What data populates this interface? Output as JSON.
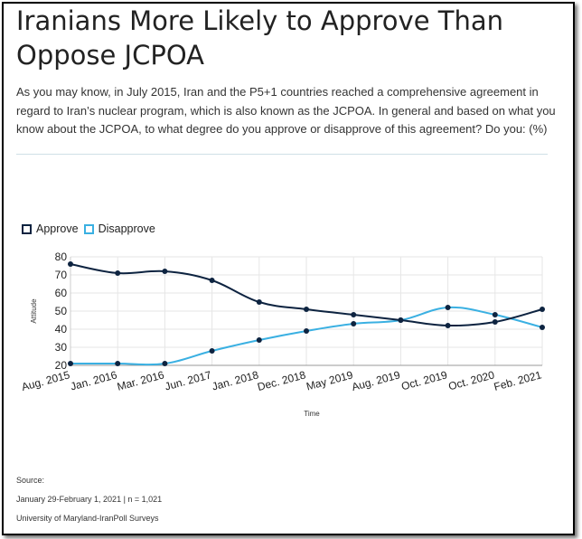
{
  "title_line1": "Iranians More Likely to Approve Than",
  "title_line2": "Oppose JCPOA",
  "question": "As you may know, in July 2015, Iran and the P5+1 countries reached a comprehensive agreement in regard to Iran’s nuclear program, which is also known as the JCPOA. In general and based on what you know about the JCPOA, to what degree do you approve or disapprove of this agreement? Do you: (%)",
  "legend": {
    "approve": "Approve",
    "disapprove": "Disapprove"
  },
  "colors": {
    "approve": "#0d2340",
    "disapprove": "#3ab0e2"
  },
  "footer": {
    "source_label": "Source:",
    "dates": "January 29-February 1, 2021 | n = 1,021",
    "org": "University of Maryland-IranPoll Surveys"
  },
  "chart_data": {
    "type": "line",
    "title": "Iranians More Likely to Approve Than Oppose JCPOA",
    "xlabel": "Time",
    "ylabel": "Attitude",
    "categories": [
      "Aug. 2015",
      "Jan. 2016",
      "Mar. 2016",
      "Jun. 2017",
      "Jan. 2018",
      "Dec. 2018",
      "May 2019",
      "Aug. 2019",
      "Oct. 2019",
      "Oct. 2020",
      "Feb. 2021"
    ],
    "series": [
      {
        "name": "Approve",
        "values": [
          76,
          71,
          72,
          67,
          55,
          51,
          48,
          45,
          42,
          44,
          51
        ]
      },
      {
        "name": "Disapprove",
        "values": [
          21,
          21,
          21,
          28,
          34,
          39,
          43,
          45,
          52,
          48,
          41
        ]
      }
    ],
    "ylim": [
      20,
      80
    ],
    "yticks": [
      20,
      30,
      40,
      50,
      60,
      70,
      80
    ],
    "grid": true,
    "legend_position": "top-left"
  }
}
